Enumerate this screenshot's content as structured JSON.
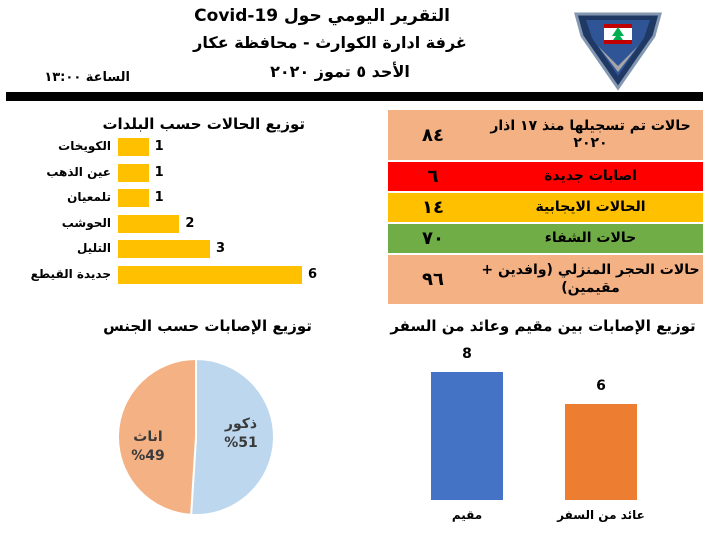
{
  "header": {
    "title": "التقرير اليومي حول Covid-19",
    "subtitle": "غرفة ادارة الكوارث - محافظة عكار",
    "date": "الأحد ٥ تموز ٢٠٢٠",
    "time": "الساعة ١٣:٠٠"
  },
  "stats": [
    {
      "label": "حالات تم تسجيلها منذ ١٧ اذار ٢٠٢٠",
      "value": "٨٤",
      "color": "#F4B183"
    },
    {
      "label": "اصابات جديدة",
      "value": "٦",
      "color": "#FF0000"
    },
    {
      "label": "الحالات الايجابية",
      "value": "١٤",
      "color": "#FFC000"
    },
    {
      "label": "حالات الشفاء",
      "value": "٧٠",
      "color": "#70AD47"
    },
    {
      "label": "حالات الحجر المنزلي (وافدين + مقيمين)",
      "value": "٩٦",
      "color": "#F4B183"
    }
  ],
  "chart_data": [
    {
      "type": "bar",
      "orientation": "horizontal",
      "title": "توزيع الحالات حسب البلدات",
      "categories": [
        "الكويخات",
        "عين الذهب",
        "تلمعيان",
        "الحوشب",
        "التليل",
        "جديدة القيطع"
      ],
      "values": [
        1,
        1,
        1,
        2,
        3,
        6
      ],
      "color": "#FFC000",
      "xlim": [
        0,
        6
      ]
    },
    {
      "type": "pie",
      "title": "توزيع الإصابات حسب الجنس",
      "categories": [
        "ذكور",
        "اناث"
      ],
      "values": [
        51,
        49
      ],
      "labels": [
        "%51",
        "%49"
      ],
      "colors": [
        "#BDD7EE",
        "#F4B183"
      ]
    },
    {
      "type": "bar",
      "title": "توزيع الإصابات بين مقيم وعائد من السفر",
      "categories": [
        "مقيم",
        "عائد من السفر"
      ],
      "values": [
        8,
        6
      ],
      "colors": [
        "#4472C4",
        "#ED7D31"
      ],
      "ylim": [
        0,
        8
      ]
    }
  ]
}
